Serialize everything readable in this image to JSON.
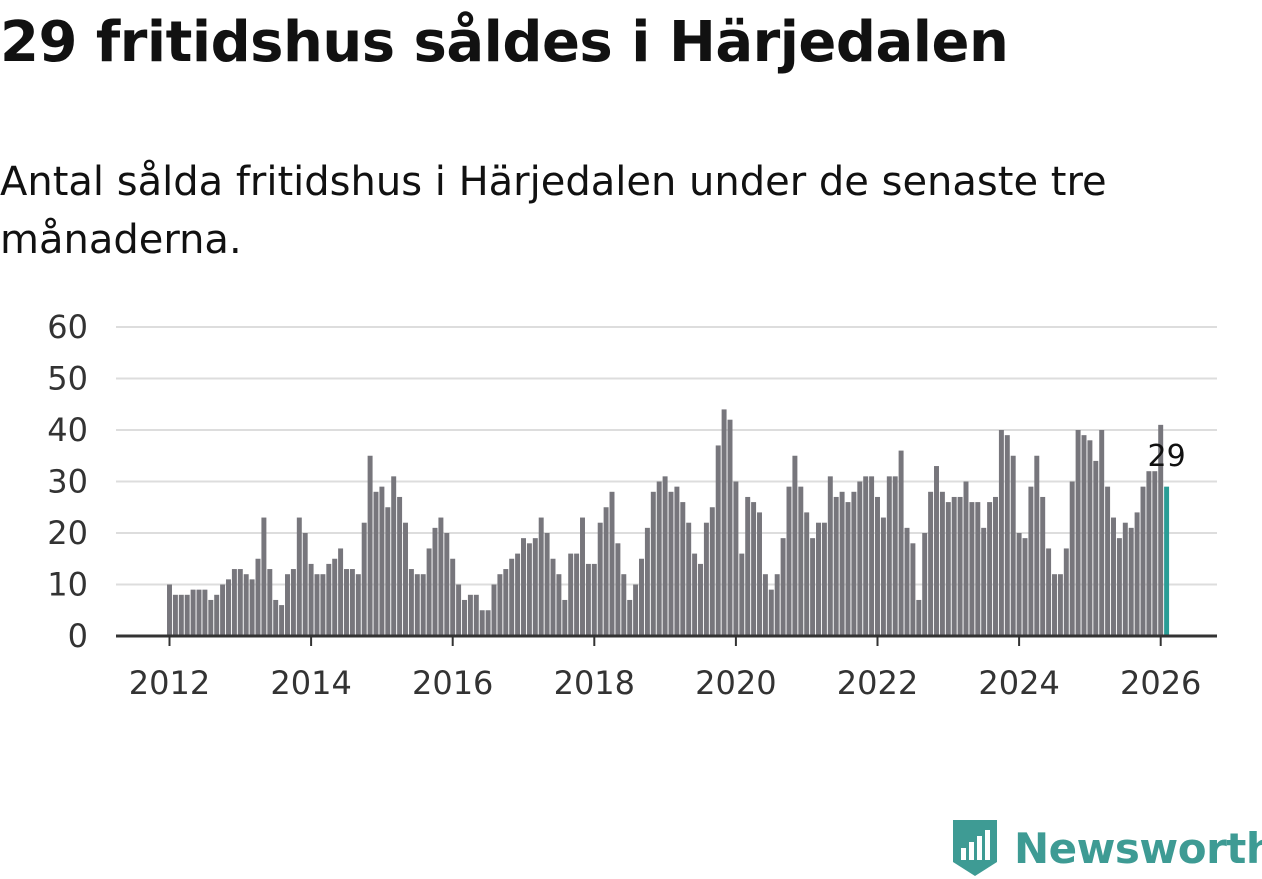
{
  "header": {
    "title": "29 fritidshus såldes i Härjedalen",
    "subtitle": "Antal sålda fritidshus i Härjedalen under de senaste tre månaderna."
  },
  "brand": {
    "name": "Newsworthy",
    "icon": "newsworthy-logo-icon"
  },
  "colors": {
    "bar": "#77767c",
    "highlight": "#2a9d96",
    "grid": "#dddddd",
    "axis": "#333333"
  },
  "chart_data": {
    "type": "bar",
    "title": "29 fritidshus såldes i Härjedalen",
    "subtitle": "Antal sålda fritidshus i Härjedalen under de senaste tre månaderna.",
    "xlabel": "",
    "ylabel": "",
    "ylim": [
      0,
      60
    ],
    "yticks": [
      "0",
      "10",
      "20",
      "30",
      "40",
      "50",
      "60"
    ],
    "xticks": [
      "2012",
      "2014",
      "2016",
      "2018",
      "2020",
      "2022",
      "2024",
      "2026"
    ],
    "start": "2012-01",
    "last_label": "29",
    "values": [
      10,
      8,
      8,
      8,
      9,
      9,
      9,
      7,
      8,
      10,
      11,
      13,
      13,
      12,
      11,
      15,
      23,
      13,
      7,
      6,
      12,
      13,
      23,
      20,
      14,
      12,
      12,
      14,
      15,
      17,
      13,
      13,
      12,
      22,
      35,
      28,
      29,
      25,
      31,
      27,
      22,
      13,
      12,
      12,
      17,
      21,
      23,
      20,
      15,
      10,
      7,
      8,
      8,
      5,
      5,
      10,
      12,
      13,
      15,
      16,
      19,
      18,
      19,
      23,
      20,
      15,
      12,
      7,
      16,
      16,
      23,
      14,
      14,
      22,
      25,
      28,
      18,
      12,
      7,
      10,
      15,
      21,
      28,
      30,
      31,
      28,
      29,
      26,
      22,
      16,
      14,
      22,
      25,
      37,
      44,
      42,
      30,
      16,
      27,
      26,
      24,
      12,
      9,
      12,
      19,
      29,
      35,
      29,
      24,
      19,
      22,
      22,
      31,
      27,
      28,
      26,
      28,
      30,
      31,
      31,
      27,
      23,
      31,
      31,
      36,
      21,
      18,
      7,
      20,
      28,
      33,
      28,
      26,
      27,
      27,
      30,
      26,
      26,
      21,
      26,
      27,
      40,
      39,
      35,
      20,
      19,
      29,
      35,
      27,
      17,
      12,
      12,
      17,
      30,
      40,
      39,
      38,
      34,
      40,
      29,
      23,
      19,
      22,
      21,
      24,
      29,
      32,
      32,
      41,
      29
    ]
  }
}
